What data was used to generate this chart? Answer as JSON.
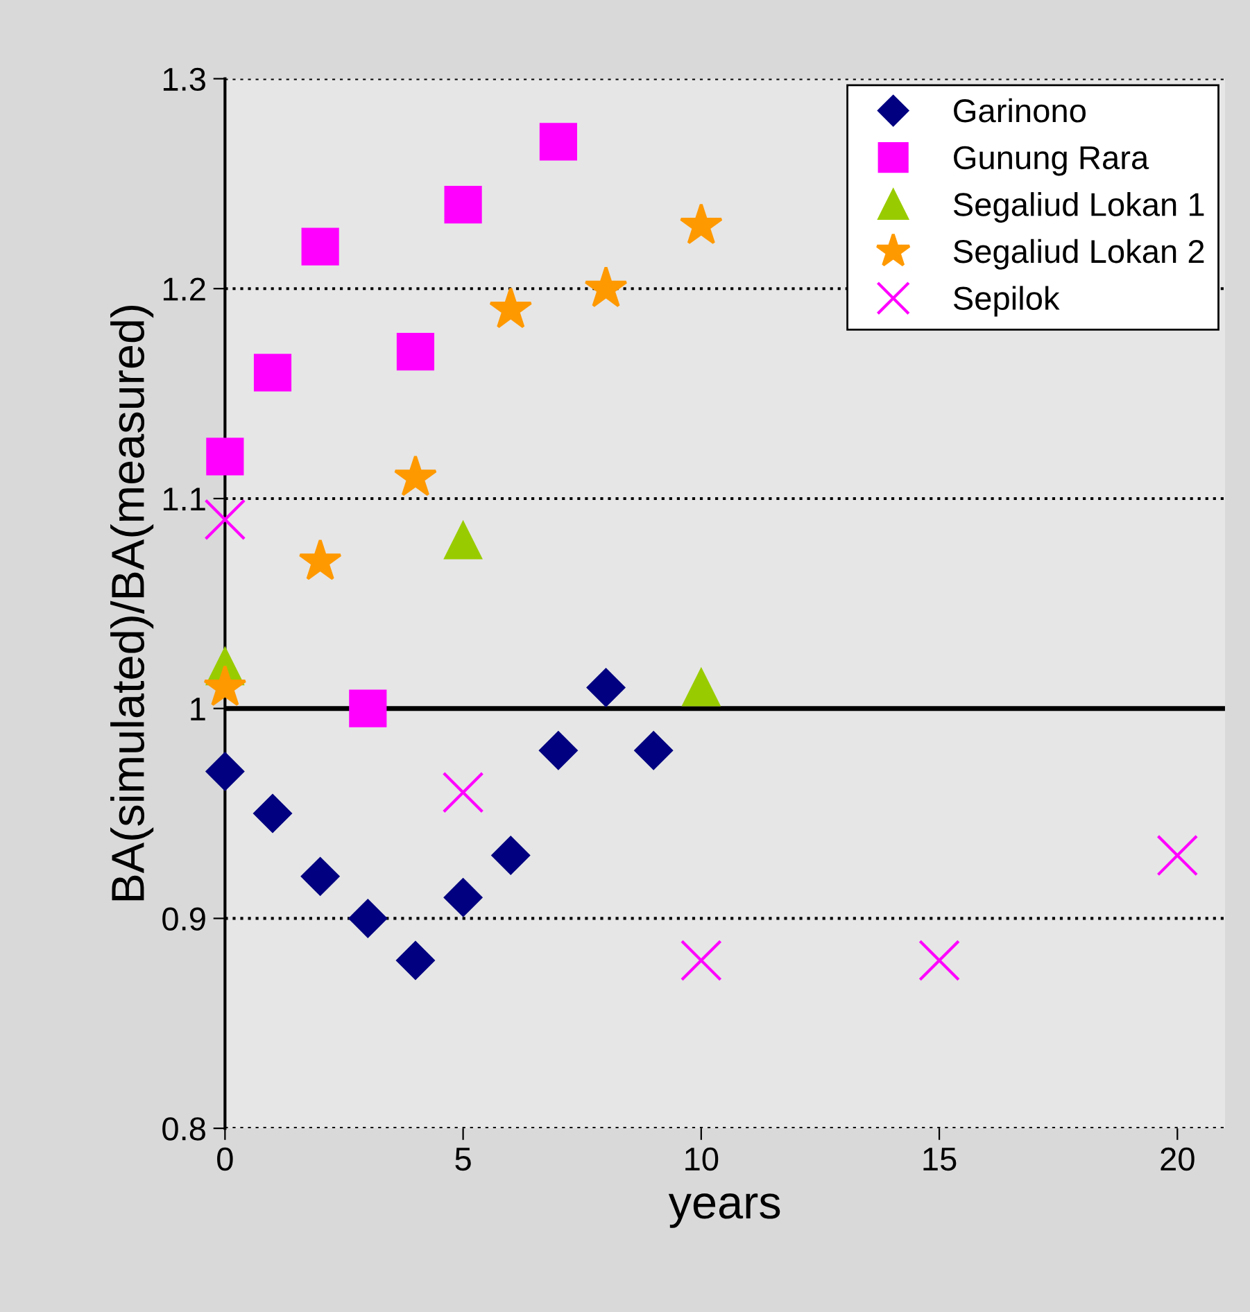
{
  "chart_data": {
    "type": "scatter",
    "xlabel": "years",
    "ylabel": "BA(simulated)/BA(measured)",
    "xlim": [
      0,
      21
    ],
    "ylim": [
      0.8,
      1.3
    ],
    "xticks": [
      0,
      5,
      10,
      15,
      20
    ],
    "yticks": [
      0.8,
      0.9,
      1,
      1.1,
      1.2,
      1.3
    ],
    "grid": "y",
    "legend": "top right",
    "ref_lines": [
      {
        "axis": "y",
        "value": 1,
        "color": "#000000",
        "line_style": "solid"
      }
    ],
    "series": [
      {
        "name": "Garinono",
        "color": "#000080",
        "marker": "diamond",
        "x": [
          0,
          1,
          2,
          3,
          4,
          5,
          6,
          7,
          8,
          9
        ],
        "values": [
          0.97,
          0.95,
          0.92,
          0.9,
          0.88,
          0.91,
          0.93,
          0.98,
          1.01,
          0.98
        ]
      },
      {
        "name": "Gunung Rara",
        "color": "#ff00ff",
        "marker": "square",
        "x": [
          0,
          1,
          2,
          3,
          4,
          5,
          7
        ],
        "values": [
          1.12,
          1.16,
          1.22,
          1.0,
          1.17,
          1.24,
          1.27
        ]
      },
      {
        "name": "Segaliud Lokan 1",
        "color": "#99cc00",
        "marker": "triangle",
        "x": [
          0,
          5,
          10
        ],
        "values": [
          1.02,
          1.08,
          1.01
        ]
      },
      {
        "name": "Segaliud Lokan 2",
        "color": "#ff9900",
        "marker": "star",
        "x": [
          0,
          2,
          4,
          6,
          8,
          10
        ],
        "values": [
          1.01,
          1.07,
          1.11,
          1.19,
          1.2,
          1.23
        ]
      },
      {
        "name": "Sepilok",
        "color": "#ff00ff",
        "marker": "cross",
        "x": [
          0,
          5,
          10,
          15,
          20
        ],
        "values": [
          1.09,
          0.96,
          0.88,
          0.88,
          0.93
        ]
      }
    ]
  }
}
